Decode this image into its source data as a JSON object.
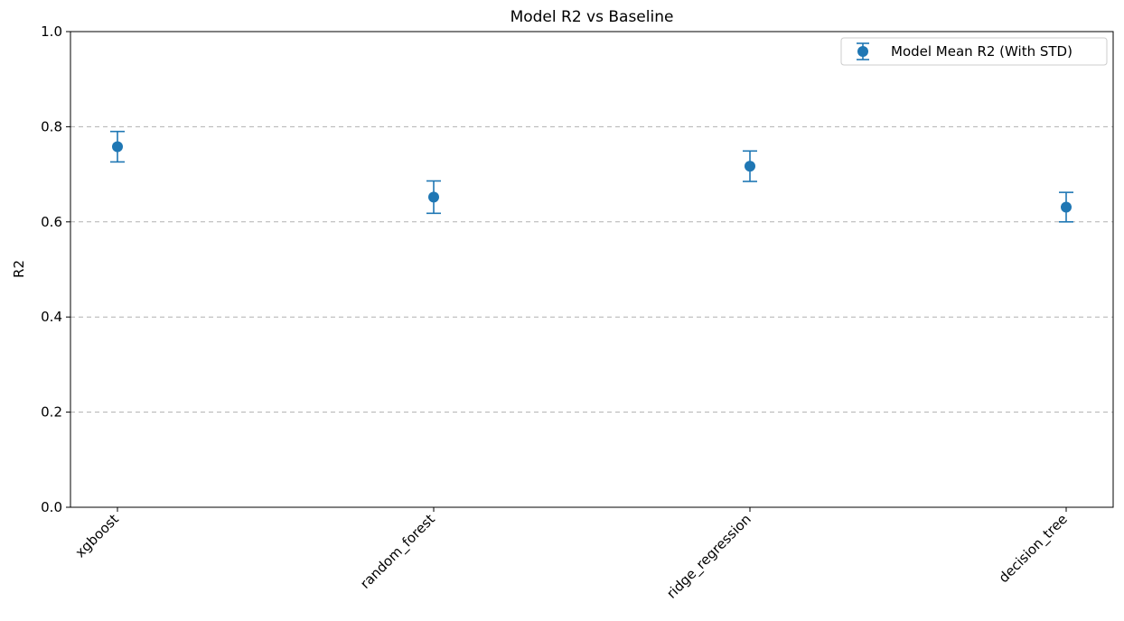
{
  "chart_data": {
    "type": "scatter",
    "title": "Model R2 vs Baseline",
    "xlabel": "",
    "ylabel": "R2",
    "categories": [
      "xgboost",
      "random_forest",
      "ridge_regression",
      "decision_tree"
    ],
    "series": [
      {
        "name": "Model Mean R2 (With STD)",
        "values": [
          0.758,
          0.652,
          0.717,
          0.631
        ],
        "std": [
          0.032,
          0.034,
          0.032,
          0.031
        ],
        "color": "#1f77b4"
      }
    ],
    "ylim": [
      0,
      1.0
    ],
    "yticks": [
      "0.0",
      "0.2",
      "0.4",
      "0.6",
      "0.8",
      "1.0"
    ],
    "grid": "y-dashed",
    "legend_position": "top-right"
  }
}
